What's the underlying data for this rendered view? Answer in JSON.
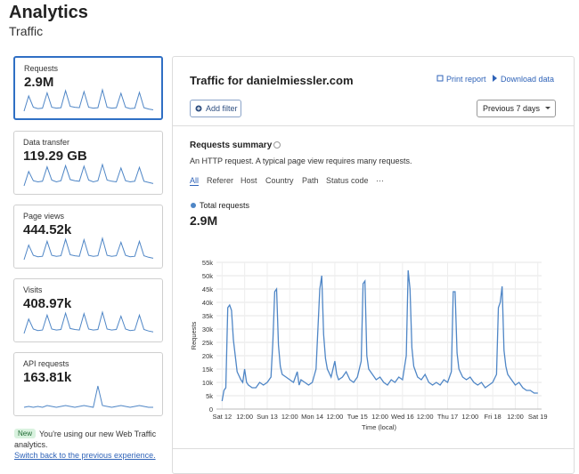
{
  "header": {
    "title": "Analytics",
    "subtitle": "Traffic"
  },
  "cards": [
    {
      "label": "Requests",
      "value": "2.9M",
      "spark": [
        3,
        38,
        12,
        9,
        10,
        45,
        12,
        10,
        11,
        50,
        14,
        12,
        11,
        48,
        12,
        10,
        11,
        52,
        12,
        10,
        11,
        44,
        12,
        9,
        10,
        46,
        11,
        8,
        6
      ]
    },
    {
      "label": "Data transfer",
      "value": "119.29 GB",
      "spark": [
        5,
        30,
        14,
        12,
        13,
        38,
        15,
        12,
        14,
        40,
        16,
        14,
        13,
        39,
        15,
        12,
        14,
        42,
        15,
        13,
        12,
        36,
        14,
        12,
        13,
        37,
        13,
        11,
        9
      ]
    },
    {
      "label": "Page views",
      "value": "444.52k",
      "spark": [
        4,
        34,
        13,
        10,
        11,
        42,
        13,
        11,
        12,
        46,
        14,
        12,
        11,
        45,
        13,
        11,
        12,
        48,
        13,
        11,
        12,
        40,
        13,
        10,
        11,
        42,
        12,
        9,
        7
      ]
    },
    {
      "label": "Visits",
      "value": "408.97k",
      "spark": [
        4,
        33,
        13,
        10,
        11,
        41,
        13,
        11,
        12,
        45,
        14,
        12,
        11,
        44,
        13,
        11,
        12,
        47,
        13,
        11,
        12,
        39,
        13,
        10,
        11,
        41,
        12,
        9,
        7
      ]
    },
    {
      "label": "API requests",
      "value": "163.81k",
      "spark": [
        6,
        7,
        6,
        7,
        6,
        8,
        7,
        6,
        7,
        8,
        7,
        6,
        7,
        8,
        7,
        6,
        30,
        8,
        7,
        6,
        7,
        8,
        7,
        6,
        7,
        8,
        7,
        6,
        6
      ]
    }
  ],
  "notice": {
    "badge": "New",
    "text": "You're using our new Web Traffic analytics.",
    "link": "Switch back to the previous experience."
  },
  "panel": {
    "title": "Traffic for danielmiessler.com",
    "print": "Print report",
    "download": "Download data",
    "filter": "Add filter",
    "range": "Previous 7 days"
  },
  "summary": {
    "title": "Requests summary",
    "description": "An HTTP request. A typical page view requires many requests.",
    "tabs": [
      "All",
      "Referer",
      "Host",
      "Country",
      "Path",
      "Status code",
      "···"
    ],
    "total": "2.9M"
  },
  "chart_data": {
    "type": "line",
    "x_label": "Time (local)",
    "y_label": "Requests",
    "x": [
      0,
      1,
      2,
      3,
      4,
      5,
      6,
      7,
      8,
      10,
      11,
      12,
      13,
      14,
      16,
      18,
      20,
      22,
      24,
      26,
      27,
      28,
      29,
      30,
      31,
      32,
      34,
      36,
      38,
      40,
      41,
      42,
      44,
      46,
      48,
      50,
      51,
      52,
      53,
      54,
      55,
      56,
      58,
      60,
      61,
      62,
      64,
      66,
      68,
      70,
      72,
      74,
      75,
      76,
      77,
      78,
      80,
      82,
      84,
      86,
      88,
      90,
      92,
      94,
      96,
      98,
      99,
      100,
      101,
      102,
      104,
      106,
      108,
      110,
      112,
      114,
      116,
      118,
      120,
      122,
      123,
      124,
      125,
      126,
      128,
      130,
      132,
      134,
      136,
      138,
      140,
      142,
      144,
      146,
      147,
      148,
      149,
      150,
      151,
      152,
      154,
      156,
      158,
      160,
      162,
      164,
      166,
      168
    ],
    "series": [
      {
        "name": "Total requests",
        "color": "#4f86c6",
        "values": [
          3000,
          7000,
          8000,
          38000,
          39000,
          37000,
          26000,
          20000,
          14000,
          11000,
          10000,
          15000,
          10000,
          9000,
          8000,
          8000,
          10000,
          9000,
          10000,
          12000,
          25000,
          44000,
          45000,
          24000,
          16000,
          13000,
          12000,
          11000,
          10000,
          14000,
          9000,
          11000,
          10000,
          9000,
          10000,
          15000,
          30000,
          45000,
          50000,
          28000,
          19000,
          15000,
          12000,
          18000,
          13000,
          11000,
          12000,
          14000,
          11000,
          10000,
          12000,
          18000,
          47000,
          48000,
          20000,
          15000,
          13000,
          11000,
          12000,
          10000,
          9000,
          11000,
          10000,
          12000,
          11000,
          20000,
          52000,
          45000,
          23000,
          16000,
          12000,
          11000,
          13000,
          10000,
          9000,
          10000,
          9000,
          11000,
          10000,
          14000,
          44000,
          44000,
          21000,
          15000,
          12000,
          11000,
          12000,
          10000,
          9000,
          10000,
          8000,
          9000,
          10000,
          13000,
          38000,
          40000,
          46000,
          22000,
          16000,
          13000,
          11000,
          9000,
          10000,
          8000,
          7000,
          7000,
          6000,
          6000
        ]
      }
    ],
    "xlim": [
      -3,
      170
    ],
    "xticks": [
      {
        "value": 0,
        "label": "Sat 12"
      },
      {
        "value": 12,
        "label": "12:00"
      },
      {
        "value": 24,
        "label": "Sun 13"
      },
      {
        "value": 36,
        "label": "12:00"
      },
      {
        "value": 48,
        "label": "Mon 14"
      },
      {
        "value": 60,
        "label": "12:00"
      },
      {
        "value": 72,
        "label": "Tue 15"
      },
      {
        "value": 84,
        "label": "12:00"
      },
      {
        "value": 96,
        "label": "Wed 16"
      },
      {
        "value": 108,
        "label": "12:00"
      },
      {
        "value": 120,
        "label": "Thu 17"
      },
      {
        "value": 132,
        "label": "12:00"
      },
      {
        "value": 144,
        "label": "Fri 18"
      },
      {
        "value": 156,
        "label": "12:00"
      },
      {
        "value": 168,
        "label": "Sat 19"
      }
    ],
    "ylim": [
      0,
      55000
    ],
    "yticks": [
      0,
      {
        "value": 5000,
        "label": "5k"
      },
      {
        "value": 10000,
        "label": "10k"
      },
      {
        "value": 15000,
        "label": "15k"
      },
      {
        "value": 20000,
        "label": "20k"
      },
      {
        "value": 25000,
        "label": "25k"
      },
      {
        "value": 30000,
        "label": "30k"
      },
      {
        "value": 35000,
        "label": "35k"
      },
      {
        "value": 40000,
        "label": "40k"
      },
      {
        "value": 45000,
        "label": "45k"
      },
      {
        "value": 50000,
        "label": "50k"
      },
      {
        "value": 55000,
        "label": "55k"
      }
    ],
    "grid": true
  }
}
